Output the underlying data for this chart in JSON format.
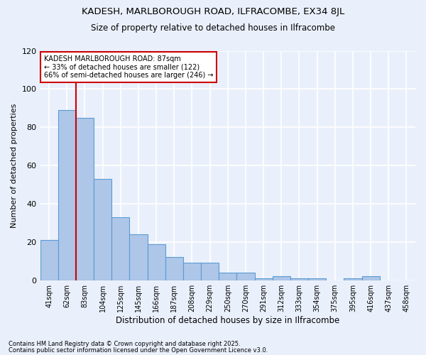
{
  "title1": "KADESH, MARLBOROUGH ROAD, ILFRACOMBE, EX34 8JL",
  "title2": "Size of property relative to detached houses in Ilfracombe",
  "xlabel": "Distribution of detached houses by size in Ilfracombe",
  "ylabel": "Number of detached properties",
  "categories": [
    "41sqm",
    "62sqm",
    "83sqm",
    "104sqm",
    "125sqm",
    "145sqm",
    "166sqm",
    "187sqm",
    "208sqm",
    "229sqm",
    "250sqm",
    "270sqm",
    "291sqm",
    "312sqm",
    "333sqm",
    "354sqm",
    "375sqm",
    "395sqm",
    "416sqm",
    "437sqm",
    "458sqm"
  ],
  "values": [
    21,
    89,
    85,
    53,
    33,
    24,
    19,
    12,
    9,
    9,
    4,
    4,
    1,
    2,
    1,
    1,
    0,
    1,
    2,
    0,
    0
  ],
  "bar_color": "#aec6e8",
  "bar_edge_color": "#5b9bd5",
  "bg_color": "#eaf0fb",
  "grid_color": "#ffffff",
  "annotation_box_color": "#ffffff",
  "annotation_border_color": "#cc0000",
  "vline_color": "#cc0000",
  "vline_x": 2.0,
  "annotation_text": "KADESH MARLBOROUGH ROAD: 87sqm\n← 33% of detached houses are smaller (122)\n66% of semi-detached houses are larger (246) →",
  "footer1": "Contains HM Land Registry data © Crown copyright and database right 2025.",
  "footer2": "Contains public sector information licensed under the Open Government Licence v3.0.",
  "ylim": [
    0,
    120
  ],
  "yticks": [
    0,
    20,
    40,
    60,
    80,
    100,
    120
  ]
}
